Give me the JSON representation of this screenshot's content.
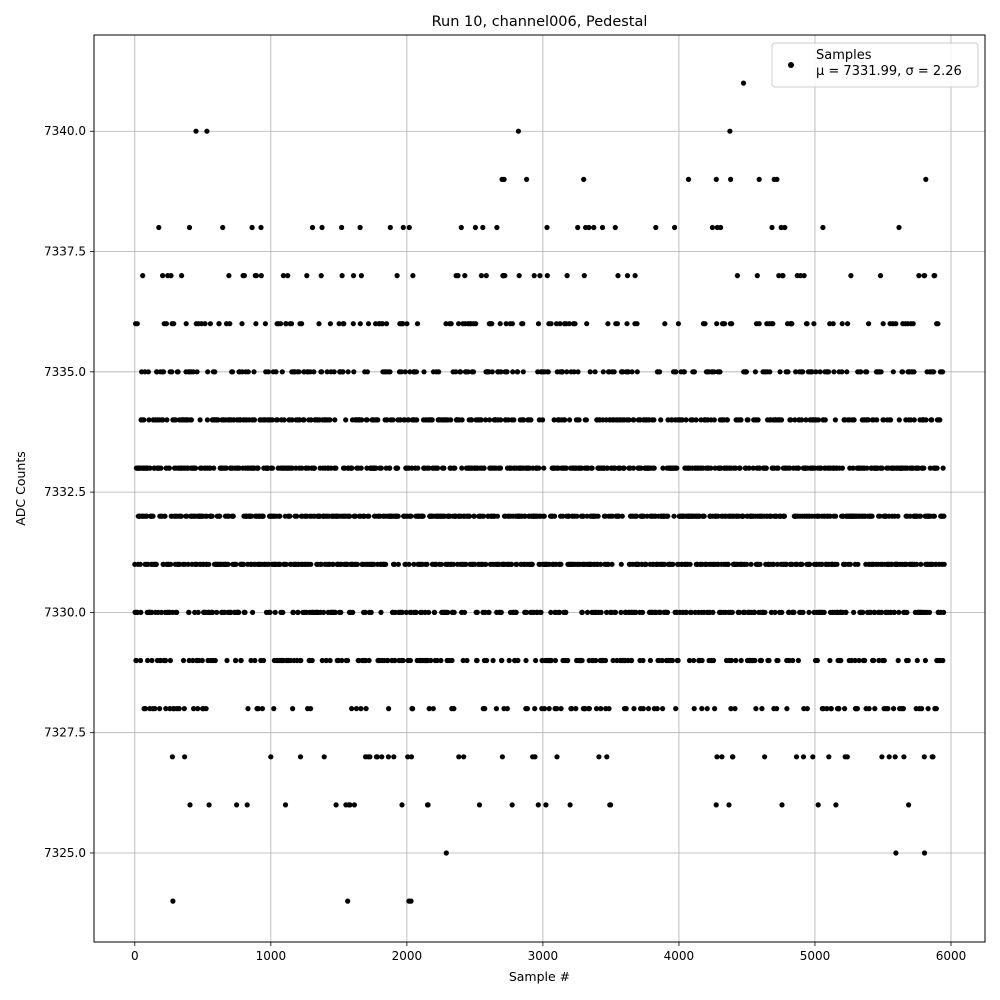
{
  "chart_data": {
    "type": "scatter",
    "title": "Run 10, channel006, Pedestal",
    "xlabel": "Sample #",
    "ylabel": "ADC Counts",
    "xlim": [
      -300,
      6250
    ],
    "ylim": [
      7323.15,
      7342.0
    ],
    "xticks": [
      0,
      1000,
      2000,
      3000,
      4000,
      5000,
      6000
    ],
    "xtick_labels": [
      "0",
      "1000",
      "2000",
      "3000",
      "4000",
      "5000",
      "6000"
    ],
    "yticks": [
      7325.0,
      7327.5,
      7330.0,
      7332.5,
      7335.0,
      7337.5,
      7340.0
    ],
    "ytick_labels": [
      "7325.0",
      "7327.5",
      "7330.0",
      "7332.5",
      "7335.0",
      "7337.5",
      "7340.0"
    ],
    "grid": true,
    "legend": {
      "placement": "top-right",
      "series_label": "Samples",
      "stats_label": "μ = 7331.99, σ = 2.26"
    },
    "point_color": "#000000",
    "n_samples": 5952,
    "value_levels": [
      7324,
      7325,
      7326,
      7327,
      7328,
      7329,
      7330,
      7331,
      7332,
      7333,
      7334,
      7335,
      7336,
      7337,
      7338,
      7339,
      7340,
      7341
    ],
    "series": [
      {
        "values_description": "sample index vs ADC counts, integer-valued ADC counts",
        "outliers": [
          {
            "x": 280,
            "y": 7324
          },
          {
            "x": 1565,
            "y": 7324
          },
          {
            "x": 2015,
            "y": 7324
          },
          {
            "x": 2030,
            "y": 7324
          },
          {
            "x": 2290,
            "y": 7325
          },
          {
            "x": 5595,
            "y": 7325
          },
          {
            "x": 5805,
            "y": 7325
          },
          {
            "x": 450,
            "y": 7340
          },
          {
            "x": 530,
            "y": 7340
          },
          {
            "x": 2820,
            "y": 7340
          },
          {
            "x": 4375,
            "y": 7340
          },
          {
            "x": 4475,
            "y": 7341
          },
          {
            "x": 2700,
            "y": 7339
          },
          {
            "x": 2715,
            "y": 7339
          },
          {
            "x": 2880,
            "y": 7339
          },
          {
            "x": 3300,
            "y": 7339
          },
          {
            "x": 4070,
            "y": 7339
          },
          {
            "x": 4275,
            "y": 7339
          },
          {
            "x": 4380,
            "y": 7339
          },
          {
            "x": 4590,
            "y": 7339
          },
          {
            "x": 4700,
            "y": 7339
          },
          {
            "x": 4720,
            "y": 7339
          },
          {
            "x": 5815,
            "y": 7339
          }
        ]
      }
    ]
  }
}
